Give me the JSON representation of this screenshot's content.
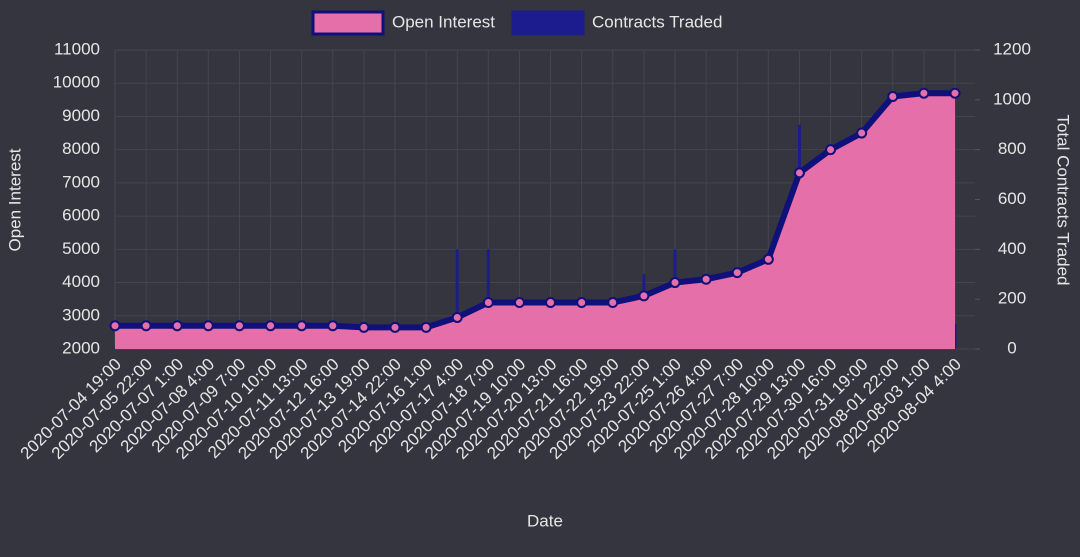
{
  "chart_data": {
    "type": "line",
    "x_label": "Date",
    "y_label": "Open Interest",
    "y2_label": "Total Contracts Traded",
    "categories": [
      "2020-07-04  19:00",
      "2020-07-05  22:00",
      "2020-07-07  1:00",
      "2020-07-08  4:00",
      "2020-07-09  7:00",
      "2020-07-10  10:00",
      "2020-07-11  13:00",
      "2020-07-12  16:00",
      "2020-07-13  19:00",
      "2020-07-14  22:00",
      "2020-07-16  1:00",
      "2020-07-17  4:00",
      "2020-07-18  7:00",
      "2020-07-19  10:00",
      "2020-07-20  13:00",
      "2020-07-21  16:00",
      "2020-07-22  19:00",
      "2020-07-23  22:00",
      "2020-07-25  1:00",
      "2020-07-26  4:00",
      "2020-07-27  7:00",
      "2020-07-28  10:00",
      "2020-07-29  13:00",
      "2020-07-30  16:00",
      "2020-07-31  19:00",
      "2020-08-01  22:00",
      "2020-08-03  1:00",
      "2020-08-04  4:00"
    ],
    "series": [
      {
        "name": "Open Interest",
        "type": "area",
        "color": "#e56fa8",
        "line_color": "#10107a",
        "values": [
          2700,
          2700,
          2700,
          2700,
          2700,
          2700,
          2700,
          2700,
          2650,
          2650,
          2650,
          2950,
          3400,
          3400,
          3400,
          3400,
          3400,
          3600,
          4000,
          4100,
          4300,
          4700,
          7300,
          8000,
          8500,
          9600,
          9700,
          9700
        ]
      },
      {
        "name": "Contracts Traded",
        "type": "bar",
        "axis": "y2",
        "color": "#1c1c8f",
        "values": [
          5,
          3,
          2,
          2,
          2,
          1,
          3,
          10,
          30,
          5,
          5,
          400,
          400,
          10,
          8,
          5,
          5,
          300,
          400,
          20,
          80,
          300,
          900,
          400,
          650,
          500,
          450,
          100
        ]
      }
    ],
    "ylim": [
      2000,
      11000
    ],
    "yticks": [
      2000,
      3000,
      4000,
      5000,
      6000,
      7000,
      8000,
      9000,
      10000,
      11000
    ],
    "y2lim": [
      0,
      1200
    ],
    "y2ticks": [
      0,
      200,
      400,
      600,
      800,
      1000,
      1200
    ],
    "grid": true
  }
}
